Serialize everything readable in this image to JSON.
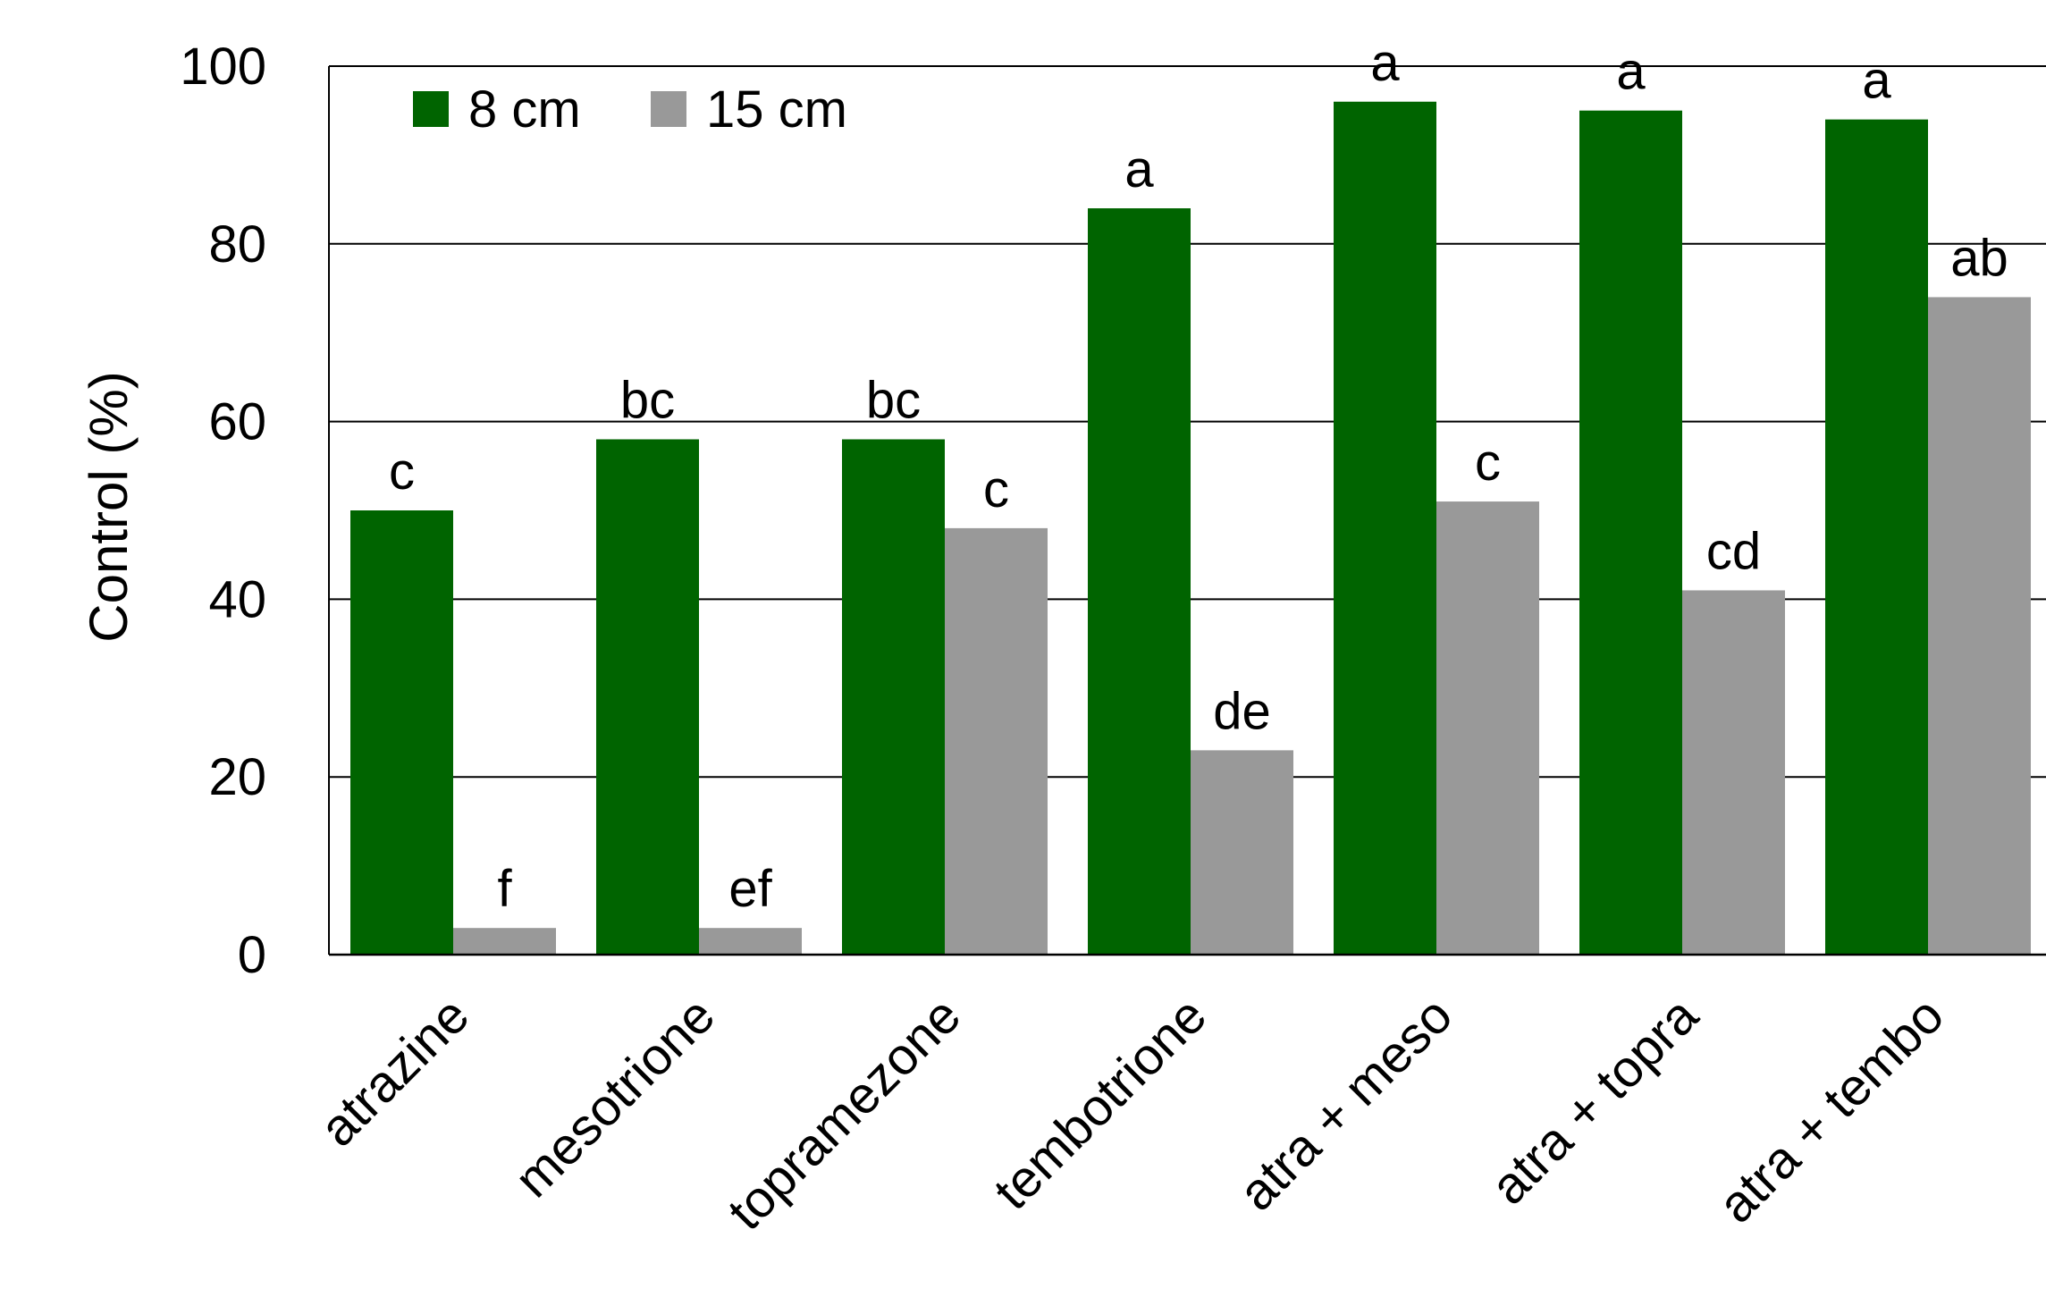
{
  "chart_data": {
    "type": "bar",
    "ylabel": "Control (%)",
    "xlabel": "",
    "title": "",
    "ylim": [
      0,
      100
    ],
    "yticks": [
      0,
      20,
      40,
      60,
      80,
      100
    ],
    "grid": true,
    "legend_position": "top-left",
    "categories": [
      "atrazine",
      "mesotrione",
      "topramezone",
      "tembotrione",
      "atra + meso",
      "atra + topra",
      "atra + tembo"
    ],
    "series": [
      {
        "name": "8 cm",
        "color": "#006400",
        "values": [
          50,
          58,
          58,
          84,
          96,
          95,
          94
        ],
        "labels": [
          "c",
          "bc",
          "bc",
          "a",
          "a",
          "a",
          "a"
        ]
      },
      {
        "name": "15 cm",
        "color": "#999999",
        "values": [
          3,
          3,
          48,
          23,
          51,
          41,
          74
        ],
        "labels": [
          "f",
          "ef",
          "c",
          "de",
          "c",
          "cd",
          "ab"
        ]
      }
    ]
  }
}
